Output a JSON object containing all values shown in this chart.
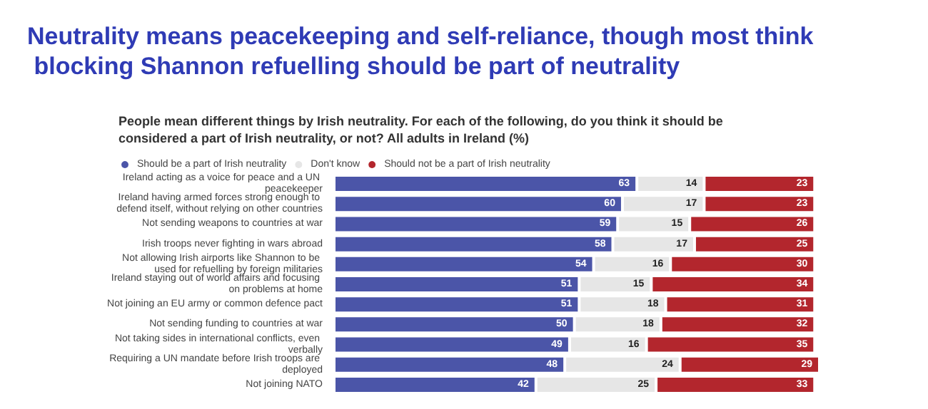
{
  "chart_data": {
    "type": "bar",
    "orientation": "horizontal",
    "stacked": true,
    "title": "Neutrality means peacekeeping and self-reliance, though most think blocking Shannon refuelling should be part of neutrality",
    "subtitle": "People mean different things by Irish neutrality. For each of the following, do you think it should be considered a part of Irish neutrality, or not? All adults in Ireland (%)",
    "categories": [
      "Ireland acting as a voice for peace and a UN peacekeeper",
      "Ireland having armed forces strong enough to defend itself, without relying on other countries",
      "Not sending weapons to countries at war",
      "Irish troops never fighting in wars abroad",
      "Not allowing Irish airports like Shannon to be used for refuelling by foreign militaries",
      "Ireland staying out of world affairs and focusing on problems at home",
      "Not joining an EU army or common defence pact",
      "Not sending funding to countries at war",
      "Not taking sides in international conflicts, even verbally",
      "Requiring a UN mandate before Irish troops are deployed",
      "Not joining NATO"
    ],
    "series": [
      {
        "name": "Should be a part of Irish neutrality",
        "color": "#4b55a8",
        "values": [
          63,
          60,
          59,
          58,
          54,
          51,
          51,
          50,
          49,
          48,
          42
        ]
      },
      {
        "name": "Don't know",
        "color": "#e6e6e6",
        "values": [
          14,
          17,
          15,
          17,
          16,
          15,
          18,
          18,
          16,
          24,
          25
        ]
      },
      {
        "name": "Should not be a part of Irish neutrality",
        "color": "#b3262d",
        "values": [
          23,
          23,
          26,
          25,
          30,
          34,
          31,
          32,
          35,
          29,
          33
        ]
      }
    ],
    "data_labels": true,
    "legend": "top left"
  }
}
